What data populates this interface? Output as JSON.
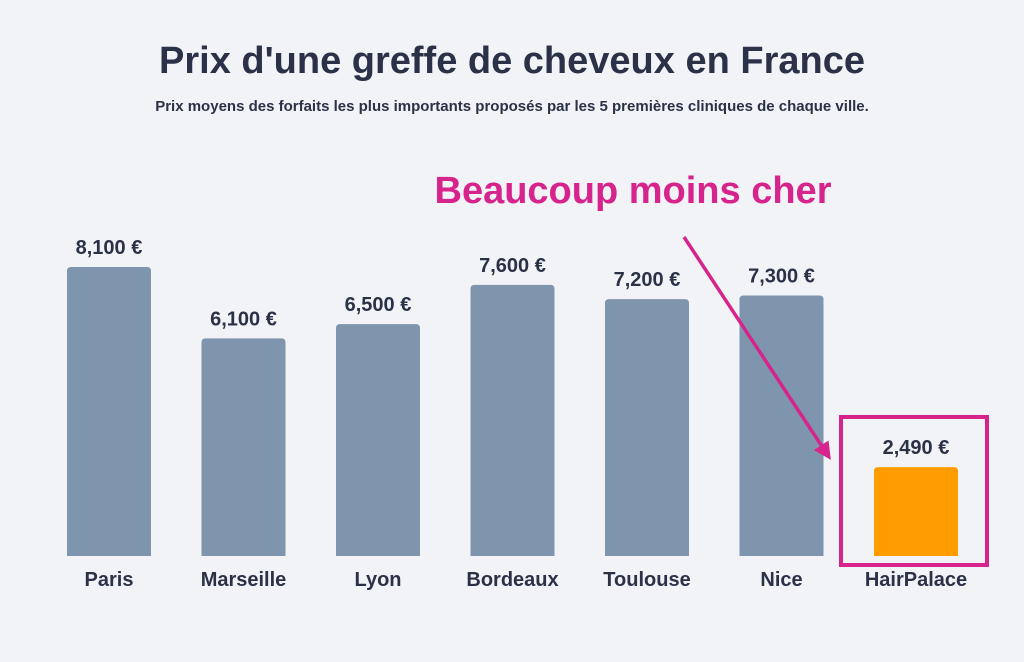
{
  "chart_data": {
    "type": "bar",
    "title": "Prix d'une greffe de cheveux en France",
    "subtitle": "Prix moyens des forfaits les plus importants proposés par les 5 premières cliniques de chaque ville.",
    "categories": [
      "Paris",
      "Marseille",
      "Lyon",
      "Bordeaux",
      "Toulouse",
      "Nice",
      "HairPalace"
    ],
    "values": [
      8100,
      6100,
      6500,
      7600,
      7200,
      7300,
      2490
    ],
    "value_labels": [
      "8,100 €",
      "6,100 €",
      "6,500 €",
      "7,600 €",
      "7,200 €",
      "7,300 €",
      "2,490 €"
    ],
    "xlabel": "",
    "ylabel": "",
    "ylim": [
      0,
      8100
    ],
    "grid": false,
    "highlight_category": "HairPalace",
    "annotation": "Beaucoup moins cher"
  },
  "colors": {
    "background": "#f2f3f7",
    "bar": "#7f95ae",
    "highlight_bar": "#ff9c00",
    "annotation": "#d6248c",
    "text": "#2b3147"
  }
}
